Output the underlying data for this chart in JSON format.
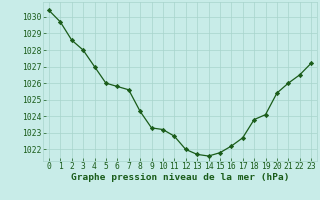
{
  "x": [
    0,
    1,
    2,
    3,
    4,
    5,
    6,
    7,
    8,
    9,
    10,
    11,
    12,
    13,
    14,
    15,
    16,
    17,
    18,
    19,
    20,
    21,
    22,
    23
  ],
  "y": [
    1030.4,
    1029.7,
    1028.6,
    1028.0,
    1027.0,
    1026.0,
    1025.8,
    1025.6,
    1024.3,
    1023.3,
    1023.2,
    1022.8,
    1022.0,
    1021.7,
    1021.6,
    1021.8,
    1022.2,
    1022.7,
    1023.8,
    1024.1,
    1025.4,
    1026.0,
    1026.5,
    1027.2
  ],
  "line_color": "#1a5c1a",
  "marker": "D",
  "marker_size": 2.2,
  "bg_color": "#c8ece8",
  "grid_color": "#a8d4cc",
  "xlabel": "Graphe pression niveau de la mer (hPa)",
  "xlabel_color": "#1a5c1a",
  "tick_color": "#1a5c1a",
  "ylabel_ticks": [
    1022,
    1023,
    1024,
    1025,
    1026,
    1027,
    1028,
    1029,
    1030
  ],
  "ylim": [
    1021.3,
    1030.9
  ],
  "xlim": [
    -0.5,
    23.5
  ],
  "xticks": [
    0,
    1,
    2,
    3,
    4,
    5,
    6,
    7,
    8,
    9,
    10,
    11,
    12,
    13,
    14,
    15,
    16,
    17,
    18,
    19,
    20,
    21,
    22,
    23
  ],
  "xlabel_fontsize": 6.8,
  "tick_fontsize": 5.8,
  "linewidth": 0.9
}
